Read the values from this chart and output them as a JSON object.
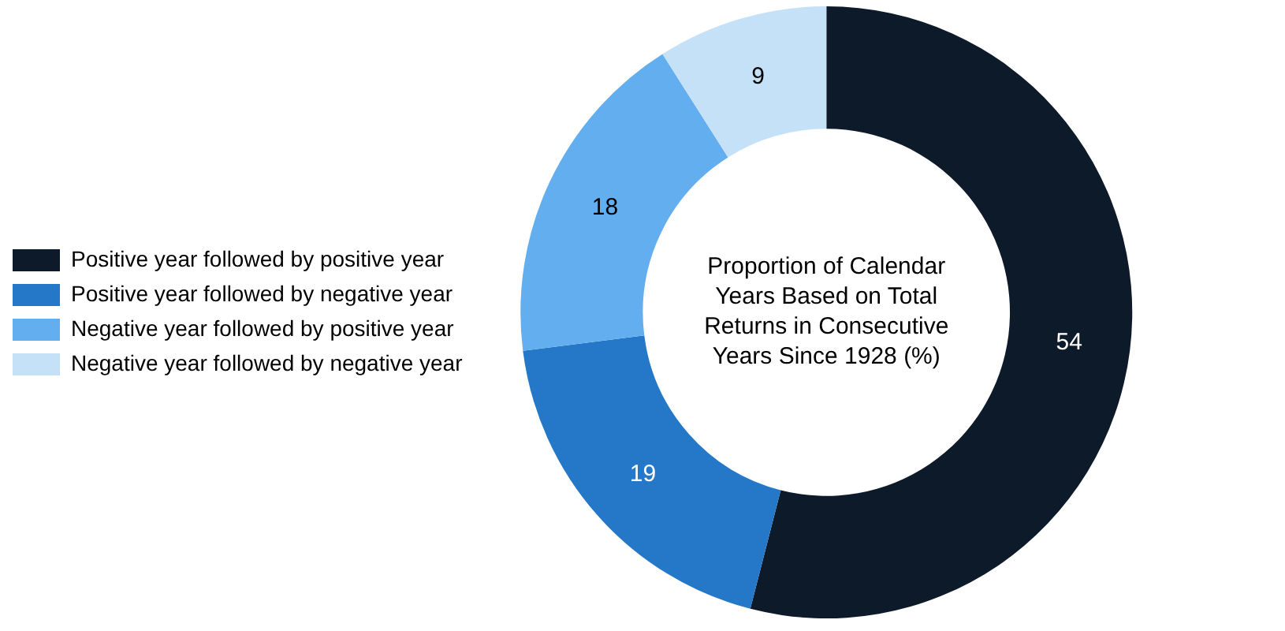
{
  "chart_data": {
    "type": "donut",
    "title": "Proportion of Calendar Years Based on Total Returns in Consecutive Years Since 1928 (%)",
    "categories": [
      "Positive year followed by positive year",
      "Positive year followed by negative year",
      "Negative year followed by positive year",
      "Negative year followed by negative year"
    ],
    "values": [
      54,
      19,
      18,
      9
    ],
    "colors": [
      "#0d1a29",
      "#2478c7",
      "#62aeef",
      "#c5e1f8"
    ],
    "data_labels": true,
    "legend": "left"
  }
}
